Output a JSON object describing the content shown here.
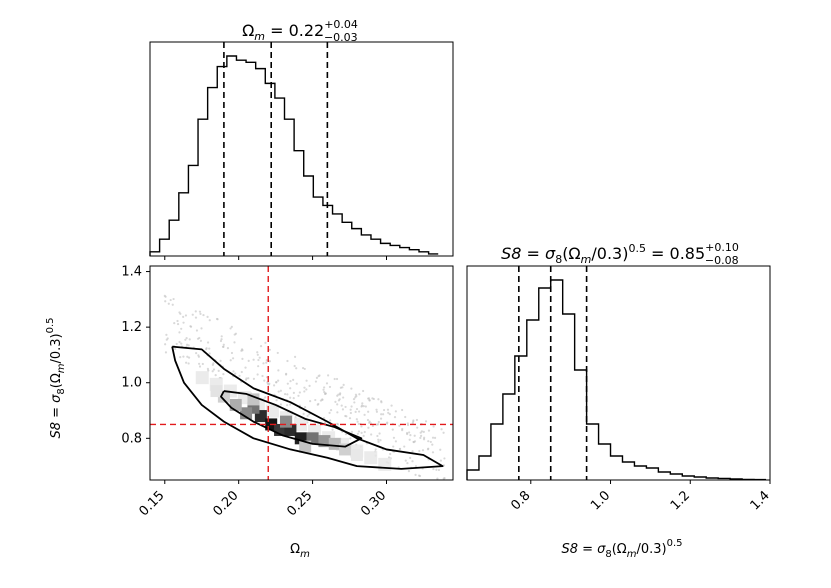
{
  "chart_data": [
    {
      "panel": "top-left",
      "type": "histogram",
      "title": "Ωm = 0.22 +0.04 -0.03",
      "title_parts": {
        "param": "Ω",
        "sub": "m",
        "eq": " = 0.22",
        "sup": "+0.04",
        "inf": "−0.03"
      },
      "parameter": "Omega_m",
      "bin_edges_start": 0.14,
      "bin_width": 0.0065,
      "values": [
        0.02,
        0.08,
        0.17,
        0.3,
        0.43,
        0.65,
        0.8,
        0.9,
        0.95,
        0.93,
        0.92,
        0.89,
        0.82,
        0.75,
        0.65,
        0.5,
        0.38,
        0.28,
        0.24,
        0.2,
        0.16,
        0.13,
        0.1,
        0.08,
        0.06,
        0.05,
        0.04,
        0.03,
        0.02,
        0.01
      ],
      "quantiles": [
        0.19,
        0.222,
        0.26
      ],
      "xlim": [
        0.14,
        0.345
      ]
    },
    {
      "panel": "bottom-left",
      "type": "2d-contour",
      "xlabel": "Ωm",
      "ylabel": "S8 = σ8(Ωm/0.3)^0.5",
      "xlabel_parts": {
        "param": "Ω",
        "sub": "m"
      },
      "ylabel_parts": {
        "a": "S8 = σ",
        "a_sub": "8",
        "b": "(Ω",
        "b_sub": "m",
        "c": "/0.3)",
        "c_sup": "0.5"
      },
      "xlim": [
        0.14,
        0.345
      ],
      "ylim": [
        0.65,
        1.42
      ],
      "xticks": [
        "0.15",
        "0.20",
        "0.25",
        "0.30"
      ],
      "xtick_values": [
        0.15,
        0.2,
        0.25,
        0.3
      ],
      "yticks": [
        "0.8",
        "1.0",
        "1.2",
        "1.4"
      ],
      "ytick_values": [
        0.8,
        1.0,
        1.2,
        1.4
      ],
      "truth": {
        "x": 0.22,
        "y": 0.85
      },
      "contour_outer": [
        [
          0.155,
          1.13
        ],
        [
          0.175,
          1.12
        ],
        [
          0.19,
          1.05
        ],
        [
          0.21,
          0.98
        ],
        [
          0.235,
          0.93
        ],
        [
          0.26,
          0.86
        ],
        [
          0.28,
          0.8
        ],
        [
          0.3,
          0.76
        ],
        [
          0.325,
          0.74
        ],
        [
          0.338,
          0.7
        ],
        [
          0.31,
          0.69
        ],
        [
          0.28,
          0.7
        ],
        [
          0.26,
          0.73
        ],
        [
          0.235,
          0.76
        ],
        [
          0.21,
          0.8
        ],
        [
          0.19,
          0.86
        ],
        [
          0.175,
          0.92
        ],
        [
          0.163,
          1.0
        ],
        [
          0.157,
          1.08
        ],
        [
          0.155,
          1.13
        ]
      ],
      "contour_inner": [
        [
          0.19,
          0.97
        ],
        [
          0.205,
          0.96
        ],
        [
          0.225,
          0.92
        ],
        [
          0.245,
          0.87
        ],
        [
          0.265,
          0.84
        ],
        [
          0.283,
          0.8
        ],
        [
          0.272,
          0.77
        ],
        [
          0.25,
          0.78
        ],
        [
          0.23,
          0.81
        ],
        [
          0.21,
          0.86
        ],
        [
          0.195,
          0.91
        ],
        [
          0.188,
          0.95
        ],
        [
          0.19,
          0.97
        ]
      ],
      "density_cells": [
        [
          0.215,
          0.88,
          0.9
        ],
        [
          0.222,
          0.85,
          1.0
        ],
        [
          0.228,
          0.83,
          0.85
        ],
        [
          0.235,
          0.83,
          0.9
        ],
        [
          0.242,
          0.8,
          0.95
        ],
        [
          0.21,
          0.91,
          0.6
        ],
        [
          0.205,
          0.89,
          0.5
        ],
        [
          0.25,
          0.8,
          0.6
        ],
        [
          0.258,
          0.79,
          0.45
        ],
        [
          0.198,
          0.92,
          0.35
        ],
        [
          0.232,
          0.86,
          0.5
        ],
        [
          0.265,
          0.78,
          0.3
        ],
        [
          0.19,
          0.95,
          0.2
        ],
        [
          0.272,
          0.76,
          0.2
        ],
        [
          0.185,
          0.97,
          0.12
        ],
        [
          0.28,
          0.74,
          0.1
        ],
        [
          0.21,
          0.94,
          0.25
        ],
        [
          0.245,
          0.77,
          0.25
        ]
      ]
    },
    {
      "panel": "bottom-right",
      "type": "histogram",
      "title": "S8 = σ8(Ωm/0.3)^0.5 = 0.85 +0.10 -0.08",
      "title_parts": {
        "a": "S8 = σ",
        "a_sub": "8",
        "b": "(Ω",
        "b_sub": "m",
        "c": "/0.3)",
        "c_sup": "0.5",
        "eq": " = 0.85",
        "sup": "+0.10",
        "inf": "−0.08"
      },
      "xlabel": "S8 = σ8(Ωm/0.3)^0.5",
      "xlabel_parts": {
        "a": "S8 = σ",
        "a_sub": "8",
        "b": "(Ω",
        "b_sub": "m",
        "c": "/0.3)",
        "c_sup": "0.5"
      },
      "bin_edges_start": 0.64,
      "bin_width": 0.03,
      "values": [
        0.05,
        0.12,
        0.28,
        0.43,
        0.62,
        0.8,
        0.96,
        1.0,
        0.83,
        0.55,
        0.28,
        0.18,
        0.12,
        0.09,
        0.07,
        0.06,
        0.04,
        0.03,
        0.02,
        0.015,
        0.01,
        0.008,
        0.005,
        0.003,
        0.002
      ],
      "quantiles": [
        0.77,
        0.85,
        0.94
      ],
      "xlim": [
        0.64,
        1.4
      ],
      "xticks": [
        "0.8",
        "1.0",
        "1.2",
        "1.4"
      ],
      "xtick_values": [
        0.8,
        1.0,
        1.2,
        1.4
      ]
    }
  ]
}
